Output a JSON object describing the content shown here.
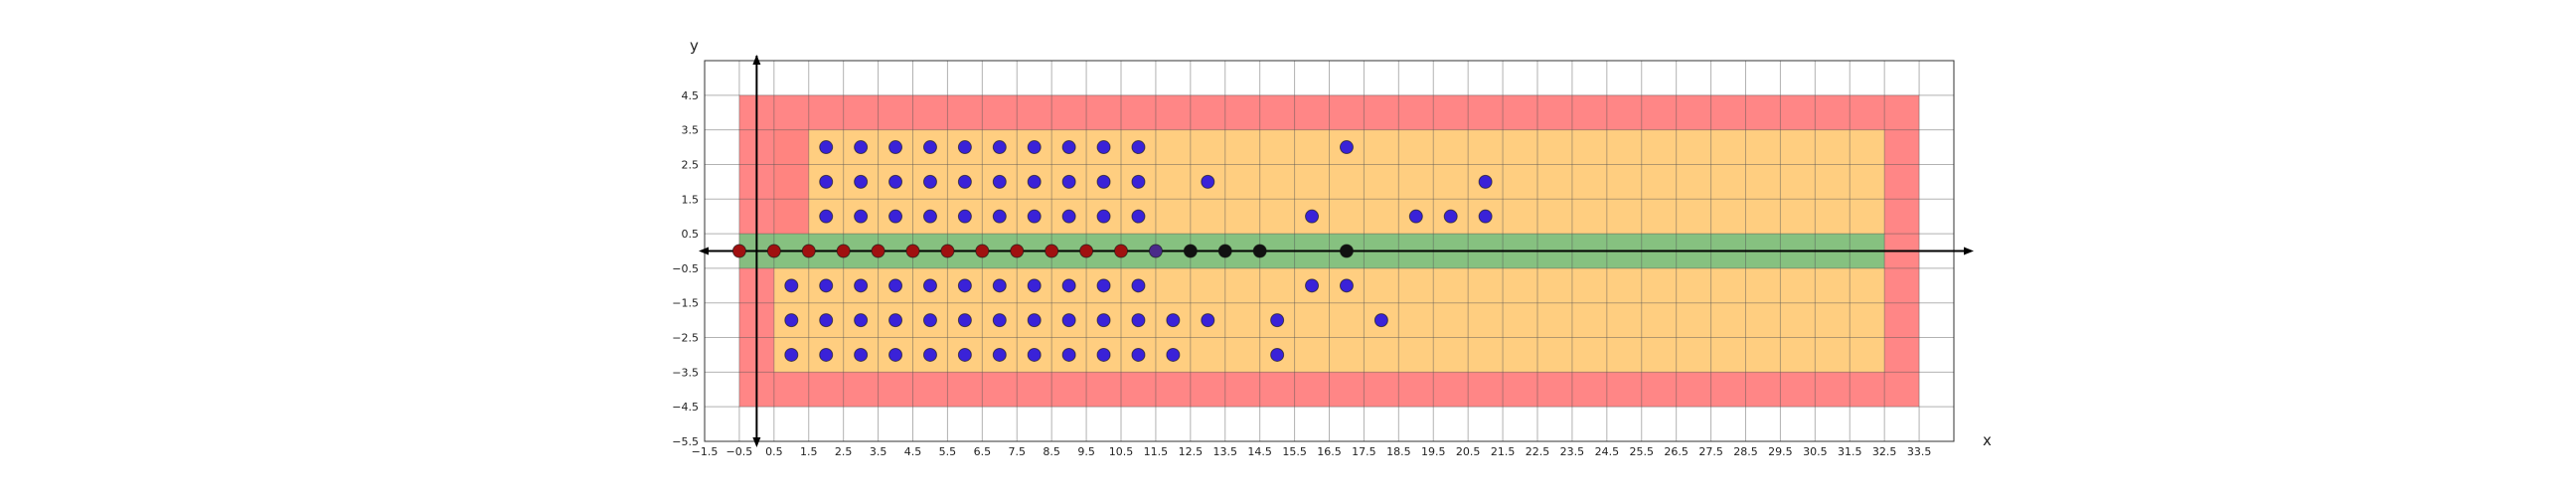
{
  "chart_data": {
    "type": "scatter",
    "xlabel": "x",
    "ylabel": "y",
    "xlim": [
      -1.5,
      34.5
    ],
    "ylim": [
      -5.5,
      5.5
    ],
    "grid": true,
    "x_ticks": [
      "−1.5",
      "−0.5",
      "0.5",
      "1.5",
      "2.5",
      "3.5",
      "4.5",
      "5.5",
      "6.5",
      "7.5",
      "8.5",
      "9.5",
      "10.5",
      "11.5",
      "12.5",
      "13.5",
      "14.5",
      "15.5",
      "16.5",
      "17.5",
      "18.5",
      "19.5",
      "20.5",
      "21.5",
      "22.5",
      "23.5",
      "24.5",
      "25.5",
      "26.5",
      "27.5",
      "28.5",
      "29.5",
      "30.5",
      "31.5",
      "32.5",
      "33.5"
    ],
    "y_ticks": [
      "4.5",
      "3.5",
      "2.5",
      "1.5",
      "0.5",
      "−0.5",
      "−1.5",
      "−2.5",
      "−3.5",
      "−4.5",
      "−5.5"
    ],
    "regions": [
      {
        "label": "",
        "color": "#ff8080",
        "x": [
          -0.5,
          33.5
        ],
        "y": [
          -4.5,
          4.5
        ]
      },
      {
        "label": "",
        "color": "#ffd280",
        "x": [
          0.5,
          32.5
        ],
        "y": [
          -3.5,
          3.5
        ]
      },
      {
        "label": "",
        "color": "#ff8080",
        "x": [
          0.5,
          1.5
        ],
        "y": [
          0.5,
          3.5
        ]
      },
      {
        "label": "",
        "color": "#80c080",
        "x": [
          -0.5,
          32.5
        ],
        "y": [
          -0.5,
          0.5
        ]
      }
    ],
    "series": [
      {
        "label": "",
        "color": "#3a22d8",
        "points": [
          [
            2,
            3
          ],
          [
            3,
            3
          ],
          [
            4,
            3
          ],
          [
            5,
            3
          ],
          [
            6,
            3
          ],
          [
            7,
            3
          ],
          [
            8,
            3
          ],
          [
            9,
            3
          ],
          [
            10,
            3
          ],
          [
            11,
            3
          ],
          [
            17,
            3
          ],
          [
            2,
            2
          ],
          [
            3,
            2
          ],
          [
            4,
            2
          ],
          [
            5,
            2
          ],
          [
            6,
            2
          ],
          [
            7,
            2
          ],
          [
            8,
            2
          ],
          [
            9,
            2
          ],
          [
            10,
            2
          ],
          [
            11,
            2
          ],
          [
            13,
            2
          ],
          [
            21,
            2
          ],
          [
            2,
            1
          ],
          [
            3,
            1
          ],
          [
            4,
            1
          ],
          [
            5,
            1
          ],
          [
            6,
            1
          ],
          [
            7,
            1
          ],
          [
            8,
            1
          ],
          [
            9,
            1
          ],
          [
            10,
            1
          ],
          [
            11,
            1
          ],
          [
            16,
            1
          ],
          [
            19,
            1
          ],
          [
            20,
            1
          ],
          [
            21,
            1
          ],
          [
            1,
            -1
          ],
          [
            2,
            -1
          ],
          [
            3,
            -1
          ],
          [
            4,
            -1
          ],
          [
            5,
            -1
          ],
          [
            6,
            -1
          ],
          [
            7,
            -1
          ],
          [
            8,
            -1
          ],
          [
            9,
            -1
          ],
          [
            10,
            -1
          ],
          [
            11,
            -1
          ],
          [
            16,
            -1
          ],
          [
            17,
            -1
          ],
          [
            1,
            -2
          ],
          [
            2,
            -2
          ],
          [
            3,
            -2
          ],
          [
            4,
            -2
          ],
          [
            5,
            -2
          ],
          [
            6,
            -2
          ],
          [
            7,
            -2
          ],
          [
            8,
            -2
          ],
          [
            9,
            -2
          ],
          [
            10,
            -2
          ],
          [
            11,
            -2
          ],
          [
            12,
            -2
          ],
          [
            13,
            -2
          ],
          [
            15,
            -2
          ],
          [
            18,
            -2
          ],
          [
            1,
            -3
          ],
          [
            2,
            -3
          ],
          [
            3,
            -3
          ],
          [
            4,
            -3
          ],
          [
            5,
            -3
          ],
          [
            6,
            -3
          ],
          [
            7,
            -3
          ],
          [
            8,
            -3
          ],
          [
            9,
            -3
          ],
          [
            10,
            -3
          ],
          [
            11,
            -3
          ],
          [
            12,
            -3
          ],
          [
            15,
            -3
          ]
        ]
      },
      {
        "label": "",
        "color": "#a01010",
        "points": [
          [
            -0.5,
            0
          ],
          [
            0.5,
            0
          ],
          [
            1.5,
            0
          ],
          [
            2.5,
            0
          ],
          [
            3.5,
            0
          ],
          [
            4.5,
            0
          ],
          [
            5.5,
            0
          ],
          [
            6.5,
            0
          ],
          [
            7.5,
            0
          ],
          [
            8.5,
            0
          ],
          [
            9.5,
            0
          ],
          [
            10.5,
            0
          ]
        ]
      },
      {
        "label": "",
        "color": "#4a2a8a",
        "points": [
          [
            11.5,
            0
          ]
        ]
      },
      {
        "label": "",
        "color": "#111111",
        "points": [
          [
            12.5,
            0
          ],
          [
            13.5,
            0
          ],
          [
            14.5,
            0
          ],
          [
            17,
            0
          ]
        ]
      }
    ]
  }
}
